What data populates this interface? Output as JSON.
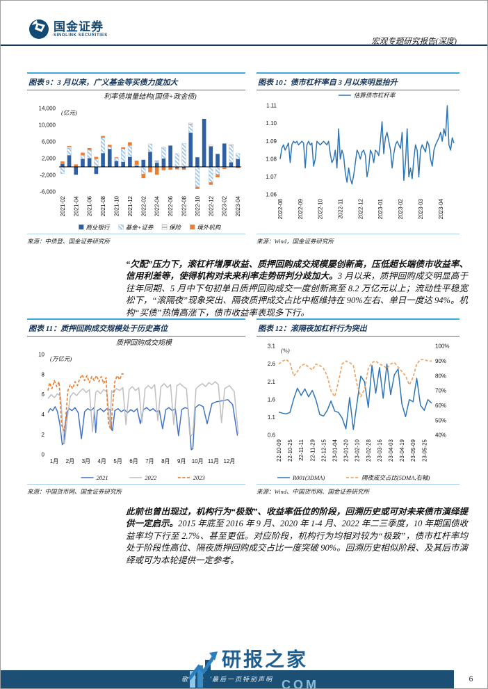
{
  "header": {
    "brand": "国金证券",
    "brand_en": "SINOLINK SECURITIES",
    "report_type": "宏观专题研究报告(深度)"
  },
  "paragraphs": [
    {
      "bold": "“欠配”压力下，滚杠杆增厚收益、质押回购成交规模屡创新高，压低超长端债市收益率、信用利差等，使得机构对未来利率走势研判分歧加大。",
      "rest": "3 月以来，质押回购成交明显高于往年同期、5 月中下旬初单日质押回购成交一度创新高至 8.2 万亿元以上；流动性平稳宽松下，“滚隔夜”现象突出、隔夜质押成交占比中枢维持在 90%左右、单日一度达 94%。机构“买债”热情高涨下，债市收益率表现多下行。"
    },
    {
      "bold": "此前也曾出现过，机构行为“极致”、收益率低位的阶段，回溯历史或可对未来债市演绎提供一定启示。",
      "rest": "2015 年底至 2016 年 9 月、2020 年 1-4 月、2022 年二三季度，10 年期国债收益率均下行至 2.7%、甚至更低。对应阶段，机构行为均相对较为“极致”，债市杠杆率均处于阶段性高位、隔夜质押回购成交占比一度突破 90%。回溯历史相似阶段、及其后市演绎或可为本轮提供一定参考。"
    }
  ],
  "footer": {
    "disclaimer": "敬请参阅最后一页特别声明",
    "page_number": "6",
    "watermark": "研报之家",
    "watermark_suffix": "COM"
  },
  "chart_data": [
    {
      "type": "bar",
      "figure_label": "图表 9：3 月以来，广义基金等买债力度加大",
      "title": "利率债增量结构(国债+政金债)",
      "unit": "(亿元)",
      "source": "来源：中债登、国金证券研究所",
      "ylim": [
        -6000,
        14000
      ],
      "yticks": [
        [
          14000,
          "14,000"
        ],
        [
          10000,
          "10,000"
        ],
        [
          6000,
          "6,000"
        ],
        [
          2000,
          "2,000"
        ],
        [
          -2000,
          "-2,000"
        ],
        [
          -6000,
          "-6,000"
        ]
      ],
      "categories": [
        "2021-02",
        "2021-03",
        "2021-04",
        "2021-05",
        "2021-06",
        "2021-07",
        "2021-08",
        "2021-09",
        "2021-10",
        "2021-11",
        "2021-12",
        "2022-01",
        "2022-02",
        "2022-03",
        "2022-04",
        "2022-05",
        "2022-06",
        "2022-07",
        "2022-08",
        "2022-09",
        "2022-10",
        "2022-11",
        "2022-12",
        "2023-01",
        "2023-02",
        "2023-03",
        "2023-04"
      ],
      "xtick_every": 2,
      "legend_pos": "bottom",
      "series": [
        {
          "name": "商业银行",
          "color": "#2e5fa3",
          "values": [
            700,
            2800,
            -1900,
            1900,
            2100,
            -1700,
            3300,
            4300,
            1400,
            1200,
            2400,
            300,
            1700,
            3600,
            1000,
            2000,
            5100,
            -300,
            -400,
            8200,
            2300,
            11500,
            4900,
            3100,
            5600,
            1100,
            1900
          ]
        },
        {
          "name": "基金+证券",
          "color": "#9dc3e6",
          "hatch": "diag",
          "values": [
            -1600,
            1700,
            0,
            900,
            1900,
            1900,
            3700,
            500,
            700,
            3100,
            2700,
            200,
            -1700,
            1900,
            300,
            2500,
            0,
            3200,
            5600,
            2000,
            -4800,
            0,
            -3700,
            -1800,
            -200,
            4000,
            1300
          ]
        },
        {
          "name": "保险",
          "color": "#a6a6a6",
          "hatch": "horiz",
          "values": [
            100,
            300,
            0,
            0,
            100,
            0,
            0,
            0,
            0,
            0,
            0,
            0,
            0,
            0,
            200,
            200,
            0,
            0,
            0,
            300,
            0,
            0,
            400,
            0,
            0,
            300,
            0
          ]
        },
        {
          "name": "境外机构",
          "color": "#ed7d31",
          "values": [
            500,
            200,
            600,
            600,
            400,
            500,
            400,
            500,
            200,
            400,
            800,
            1000,
            -1000,
            -1300,
            -1900,
            -800,
            -700,
            -300,
            -300,
            0,
            -500,
            0,
            -600,
            -700,
            -300,
            0,
            -300
          ]
        }
      ]
    },
    {
      "type": "line",
      "figure_label": "图表 10：债市杠杆率自 3 月以来明显抬升",
      "source": "来源：Wind，国金证券研究所",
      "ylim": [
        1.06,
        1.11
      ],
      "yticks": [
        [
          1.11,
          "1.11"
        ],
        [
          1.1,
          "1.10"
        ],
        [
          1.09,
          "1.09"
        ],
        [
          1.08,
          "1.08"
        ],
        [
          1.07,
          "1.07"
        ],
        [
          1.06,
          "1.06"
        ]
      ],
      "xtick_labels": [
        "2022-08",
        "2022-09",
        "2022-10",
        "2022-11",
        "2022-12",
        "2023-01",
        "2023-02",
        "2023-03",
        "2023-04"
      ],
      "ticks_per": 12,
      "legend_pos": "top",
      "series": [
        {
          "name": "估算债市杠杆率",
          "color": "#2e75b6",
          "values": [
            1.08,
            1.086,
            1.088,
            1.085,
            1.087,
            1.089,
            1.078,
            1.088,
            1.09,
            1.089,
            1.09,
            1.088,
            1.089,
            1.09,
            1.089,
            1.075,
            1.088,
            1.09,
            1.088,
            1.089,
            1.076,
            1.08,
            1.09,
            1.089,
            1.088,
            1.089,
            1.09,
            1.089,
            1.088,
            1.09,
            1.083,
            1.078,
            1.08,
            1.085,
            1.075,
            1.097,
            1.08,
            1.085,
            1.082,
            1.072,
            1.067,
            1.075,
            1.069,
            1.066,
            1.071,
            1.078,
            1.085,
            1.083,
            1.08,
            1.084,
            1.085,
            1.082,
            1.07,
            1.075,
            1.085,
            1.083,
            1.078,
            1.085,
            1.084,
            1.082,
            1.09,
            1.101,
            1.083,
            1.092,
            1.095,
            1.09,
            1.085,
            1.075,
            1.083,
            1.088,
            1.09,
            1.088,
            1.086,
            1.095,
            1.068,
            1.078,
            1.097,
            1.07,
            1.075,
            1.069,
            1.08,
            1.088,
            1.085,
            1.07,
            1.085,
            1.088,
            1.086,
            1.084,
            1.09,
            1.088,
            1.08,
            1.076,
            1.085,
            1.088,
            1.09,
            1.092,
            1.095,
            1.09,
            1.097,
            1.093,
            1.11,
            1.088,
            1.085,
            1.092,
            1.089
          ]
        }
      ]
    },
    {
      "type": "line",
      "figure_label": "图表 11：质押回购成交规模处于历史高位",
      "title": "质押回购成交规模",
      "unit": "(万亿元)",
      "source": "来源：中国货币网、国金证券研究所",
      "ylim": [
        0,
        10
      ],
      "yticks": [
        [
          10,
          "10"
        ],
        [
          8,
          "8"
        ],
        [
          6,
          "6"
        ],
        [
          4,
          "4"
        ],
        [
          2,
          "2"
        ],
        [
          0,
          "0"
        ]
      ],
      "xlim": [
        1,
        13.05
      ],
      "xticks": [
        [
          1,
          "1月"
        ],
        [
          2,
          "2月"
        ],
        [
          3,
          "3月"
        ],
        [
          4,
          "4月"
        ],
        [
          5,
          "5月"
        ],
        [
          6,
          "6月"
        ],
        [
          7,
          "7月"
        ],
        [
          8,
          "8月"
        ],
        [
          9,
          "9月"
        ],
        [
          10,
          "10月"
        ],
        [
          11,
          "11月"
        ],
        [
          12,
          "12月"
        ],
        [
          13,
          ""
        ]
      ],
      "legend_pos": "bottom",
      "series": [
        {
          "name": "2021",
          "color": "#4472c4",
          "x": [
            1.0,
            1.15,
            1.3,
            1.45,
            1.6,
            1.75,
            1.9,
            2.0,
            2.1,
            2.2,
            2.35,
            2.5,
            2.7,
            2.9,
            3.1,
            3.3,
            3.5,
            3.7,
            3.9,
            4.0,
            4.1,
            4.3,
            4.5,
            4.7,
            4.9,
            5.0,
            5.05,
            5.2,
            5.4,
            5.6,
            5.8,
            6.0,
            6.2,
            6.4,
            6.6,
            6.8,
            7.0,
            7.2,
            7.4,
            7.6,
            7.8,
            8.0,
            8.2,
            8.4,
            8.6,
            8.8,
            9.0,
            9.2,
            9.4,
            9.6,
            9.8,
            10.0,
            10.1,
            10.25,
            10.5,
            10.75,
            11.0,
            11.3,
            11.6,
            12.0,
            12.3,
            12.6,
            12.9
          ],
          "values": [
            4.2,
            4.6,
            4.4,
            4.8,
            4.3,
            3.0,
            1.0,
            1.2,
            3.2,
            4.3,
            4.6,
            4.4,
            4.7,
            4.2,
            1.6,
            4.3,
            4.6,
            4.4,
            4.7,
            2.2,
            4.4,
            4.6,
            4.3,
            4.6,
            4.5,
            2.5,
            2.4,
            4.4,
            4.6,
            4.3,
            4.5,
            4.2,
            4.5,
            4.3,
            4.6,
            3.1,
            4.5,
            4.7,
            4.4,
            4.6,
            4.3,
            4.4,
            2.6,
            4.5,
            4.7,
            4.4,
            4.6,
            1.9,
            4.5,
            4.7,
            4.6,
            0.5,
            0.6,
            4.7,
            5.0,
            4.8,
            3.1,
            5.1,
            5.3,
            5.4,
            5.5,
            5.0,
            1.9
          ]
        },
        {
          "name": "2022",
          "color": "#bfbfbf",
          "x": [
            1.0,
            1.2,
            1.4,
            1.6,
            1.8,
            2.0,
            2.05,
            2.2,
            2.4,
            2.6,
            2.8,
            3.0,
            3.2,
            3.4,
            3.6,
            3.8,
            4.0,
            4.1,
            4.3,
            4.5,
            4.7,
            4.9,
            5.0,
            5.1,
            5.3,
            5.5,
            5.7,
            5.9,
            6.1,
            6.3,
            6.5,
            6.7,
            6.9,
            7.1,
            7.3,
            7.5,
            7.7,
            7.9,
            8.1,
            8.3,
            8.5,
            8.7,
            8.9,
            9.1,
            9.3,
            9.5,
            9.7,
            9.9,
            10.0,
            10.1,
            10.3,
            10.5,
            10.7,
            10.9,
            11.1,
            11.3,
            11.5,
            11.7,
            11.9,
            12.1,
            12.4,
            12.7,
            12.95
          ],
          "values": [
            5.6,
            6.0,
            5.7,
            6.1,
            5.8,
            1.2,
            1.1,
            3.5,
            5.8,
            6.2,
            5.9,
            6.3,
            6.6,
            6.2,
            6.5,
            2.3,
            6.2,
            6.4,
            6.1,
            6.5,
            6.3,
            2.8,
            6.4,
            6.2,
            6.6,
            6.4,
            6.7,
            3.0,
            6.5,
            6.8,
            6.4,
            6.7,
            3.2,
            6.6,
            6.9,
            6.6,
            7.0,
            3.4,
            6.8,
            7.1,
            6.7,
            7.0,
            3.0,
            6.9,
            7.1,
            6.8,
            6.6,
            2.0,
            1.9,
            2.1,
            6.6,
            6.9,
            7.1,
            6.8,
            7.2,
            7.0,
            7.3,
            7.0,
            3.2,
            6.6,
            6.9,
            6.3,
            2.1
          ]
        },
        {
          "name": "2023",
          "color": "#ed7d31",
          "dash": true,
          "x": [
            1.0,
            1.1,
            1.25,
            1.4,
            1.55,
            1.7,
            1.85,
            2.0,
            2.1,
            2.25,
            2.4,
            2.55,
            2.7,
            2.85,
            3.0,
            3.15,
            3.3,
            3.45,
            3.6,
            3.75,
            3.9,
            4.05,
            4.2,
            4.35,
            4.5,
            4.65,
            4.8,
            4.95,
            5.05,
            5.2,
            5.35,
            5.5,
            5.65,
            5.8
          ],
          "values": [
            6.4,
            7.2,
            6.6,
            7.4,
            6.8,
            7.3,
            3.0,
            2.4,
            3.3,
            6.4,
            7.0,
            6.6,
            7.3,
            6.9,
            7.6,
            8.0,
            7.4,
            7.9,
            7.2,
            7.8,
            7.4,
            7.9,
            7.3,
            7.8,
            7.1,
            7.7,
            3.1,
            2.5,
            4.8,
            7.3,
            7.9,
            7.5,
            8.1,
            8.0
          ]
        }
      ]
    },
    {
      "type": "line",
      "figure_label": "图表 12：滚隔夜加杠杆行为突出",
      "unit": "(%)",
      "source": "来源：Wind、中国货币网、国金证券研究所",
      "ylim": [
        0.6,
        3.1
      ],
      "yticks": [
        [
          3.1,
          "3.1"
        ],
        [
          2.6,
          "2.6"
        ],
        [
          2.1,
          "2.1"
        ],
        [
          1.6,
          "1.6"
        ],
        [
          1.1,
          "1.1"
        ],
        [
          0.6,
          "0.6"
        ]
      ],
      "ylim_right": [
        40,
        100
      ],
      "yticks_right": [
        [
          100,
          "100%"
        ],
        [
          90,
          "90%"
        ],
        [
          80,
          "80%"
        ],
        [
          70,
          "70%"
        ],
        [
          60,
          "60%"
        ],
        [
          50,
          "50%"
        ],
        [
          40,
          "40%"
        ]
      ],
      "xtick_labels": [
        "22-10-09",
        "22-10-25",
        "22-11-11",
        "22-11-29",
        "22-12-15",
        "23-01-04",
        "23-01-20",
        "23-02-10",
        "23-02-28",
        "23-03-16",
        "23-04-03",
        "23-04-19",
        "23-05-09",
        "23-05-25"
      ],
      "ticks_per": 3,
      "legend_pos": "bottom",
      "series": [
        {
          "name": "R001(3DMA)",
          "color": "#2e75b6",
          "values": [
            1.25,
            1.22,
            1.2,
            1.24,
            1.62,
            1.92,
            1.72,
            1.9,
            1.68,
            1.86,
            1.58,
            1.18,
            1.14,
            1.3,
            1.56,
            1.28,
            1.24,
            1.08,
            0.78,
            1.66,
            0.76,
            1.52,
            2.26,
            2.1,
            1.38,
            2.56,
            1.78,
            2.5,
            1.64,
            2.6,
            1.74,
            2.3,
            2.46,
            1.48,
            1.12,
            1.6,
            1.54,
            2.2,
            1.44,
            1.3,
            1.6,
            1.5
          ]
        },
        {
          "name": "隔夜成交占比(5DMA,右轴)",
          "color": "#f0a25f",
          "dash": true,
          "axis": "right",
          "values": [
            88,
            90,
            91,
            89,
            80,
            83,
            87,
            88,
            86,
            84,
            88,
            87,
            85,
            80,
            70,
            66,
            76,
            88,
            90,
            89,
            87,
            74,
            66,
            71,
            85,
            89,
            90,
            88,
            87,
            85,
            88,
            89,
            86,
            83,
            80,
            74,
            79,
            88,
            91,
            91,
            90,
            90
          ]
        }
      ]
    }
  ]
}
